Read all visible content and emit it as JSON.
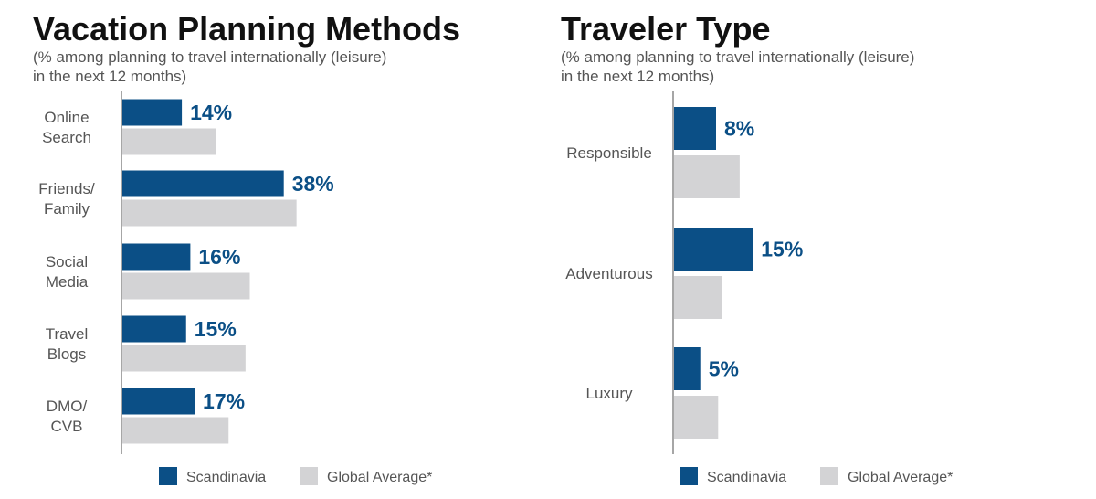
{
  "colors": {
    "primary": "#0b4f86",
    "secondary": "#d3d3d5",
    "axis": "#555555"
  },
  "chart_data": [
    {
      "type": "bar",
      "orientation": "horizontal",
      "title": "Vacation Planning Methods",
      "subtitle": [
        "(% among planning to travel internationally (leisure)",
        "in the next 12 months)"
      ],
      "categories": [
        [
          "Online",
          "Search"
        ],
        [
          "Friends/",
          "Family"
        ],
        [
          "Social",
          "Media"
        ],
        [
          "Travel",
          "Blogs"
        ],
        [
          "DMO/",
          "CVB"
        ]
      ],
      "series": [
        {
          "name": "Scandinavia",
          "values": [
            14,
            38,
            16,
            15,
            17
          ],
          "labels": [
            "14%",
            "38%",
            "16%",
            "15%",
            "17%"
          ]
        },
        {
          "name": "Global Average*",
          "values": [
            22,
            41,
            30,
            29,
            25
          ]
        }
      ],
      "xlim": [
        0,
        100
      ],
      "legend_position": "bottom"
    },
    {
      "type": "bar",
      "orientation": "horizontal",
      "title": "Traveler Type",
      "subtitle": [
        "(% among planning to travel internationally (leisure)",
        "in the next 12 months)"
      ],
      "categories": [
        [
          "Responsible"
        ],
        [
          "Adventurous"
        ],
        [
          "Luxury"
        ]
      ],
      "series": [
        {
          "name": "Scandinavia",
          "values": [
            8,
            15,
            5
          ],
          "labels": [
            "8%",
            "15%",
            "5%"
          ]
        },
        {
          "name": "Global Average*",
          "values": [
            12.5,
            9.2,
            8.4
          ]
        }
      ],
      "xlim": [
        0,
        100
      ],
      "legend_position": "bottom"
    }
  ]
}
